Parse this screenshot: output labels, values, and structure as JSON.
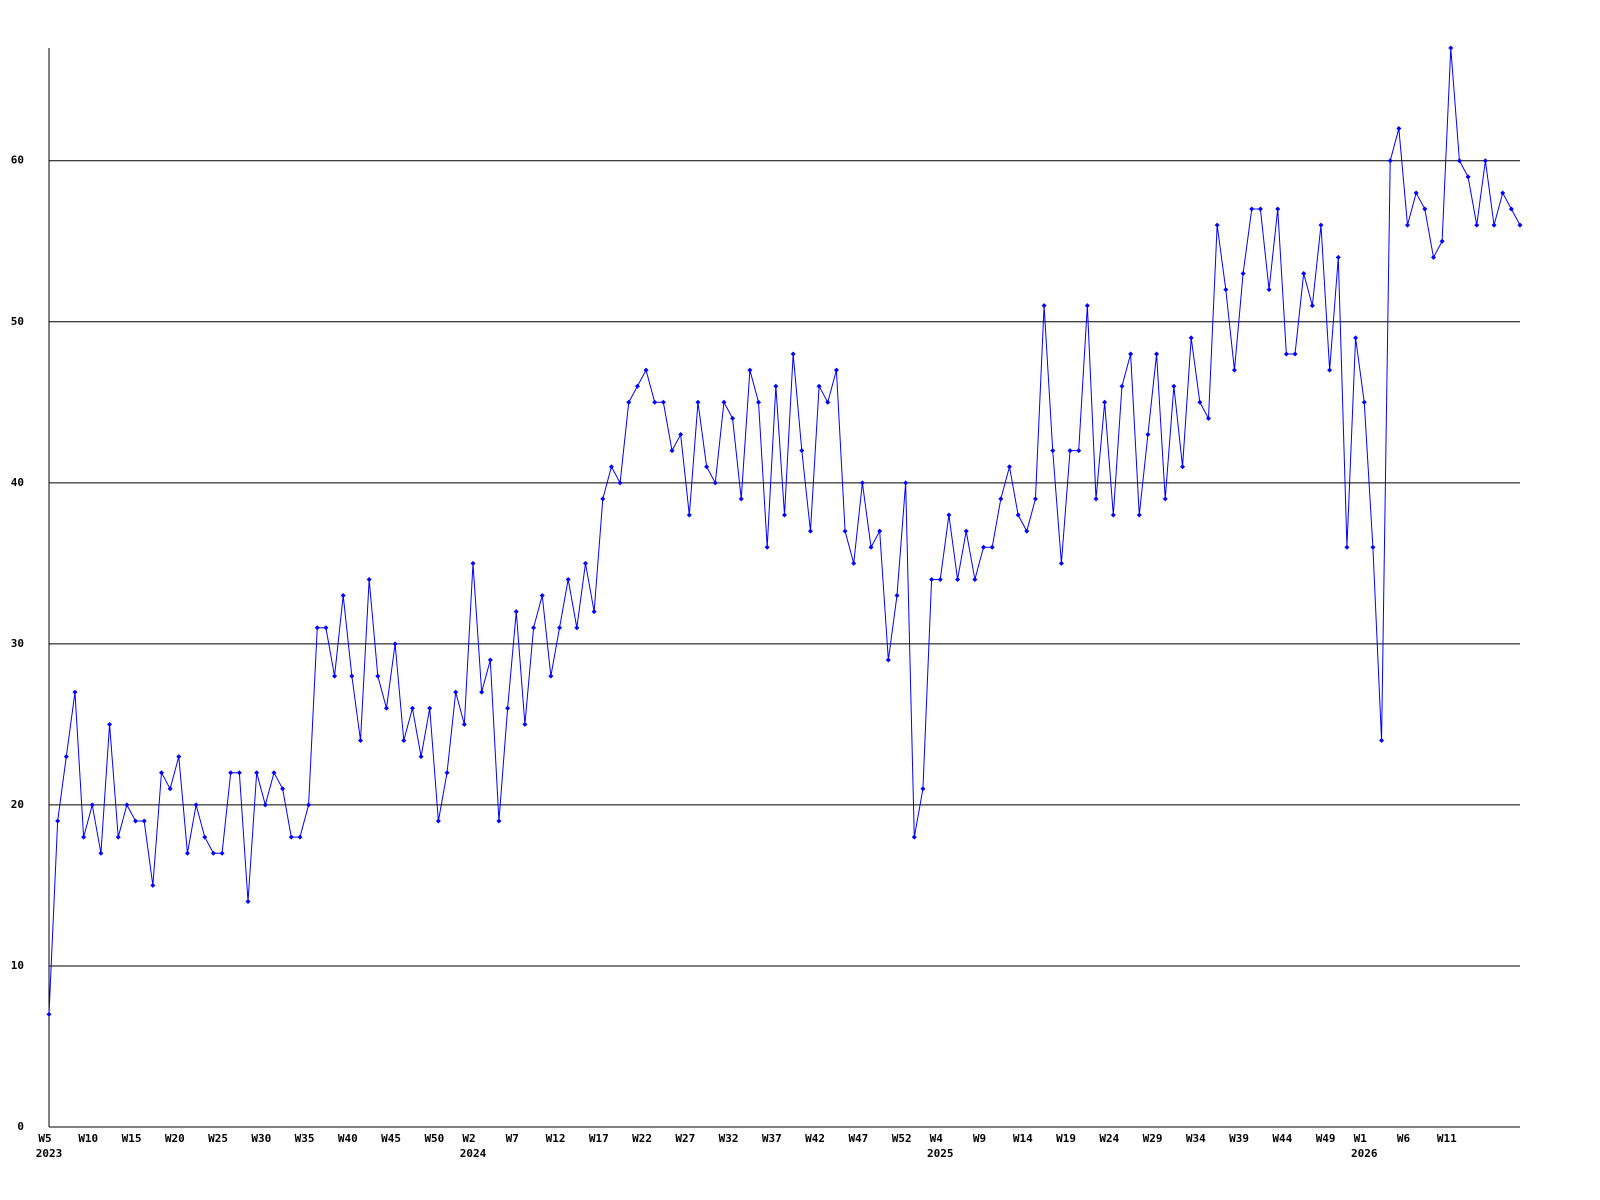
{
  "chart_data": {
    "type": "line",
    "categories": [
      "W5",
      null,
      null,
      null,
      null,
      "W10",
      null,
      null,
      null,
      null,
      "W15",
      null,
      null,
      null,
      null,
      "W20",
      null,
      null,
      null,
      null,
      "W25",
      null,
      null,
      null,
      null,
      "W30",
      null,
      null,
      null,
      null,
      "W35",
      null,
      null,
      null,
      null,
      "W40",
      null,
      null,
      null,
      null,
      "W45",
      null,
      null,
      null,
      null,
      "W50",
      null,
      null,
      null,
      "W2",
      null,
      null,
      null,
      null,
      "W7",
      null,
      null,
      null,
      null,
      "W12",
      null,
      null,
      null,
      null,
      "W17",
      null,
      null,
      null,
      null,
      "W22",
      null,
      null,
      null,
      null,
      "W27",
      null,
      null,
      null,
      null,
      "W32",
      null,
      null,
      null,
      null,
      "W37",
      null,
      null,
      null,
      null,
      "W42",
      null,
      null,
      null,
      null,
      "W47",
      null,
      null,
      null,
      null,
      "W52",
      null,
      null,
      null,
      "W4",
      null,
      null,
      null,
      null,
      "W9",
      null,
      null,
      null,
      null,
      "W14",
      null,
      null,
      null,
      null,
      "W19",
      null,
      null,
      null,
      null,
      "W24",
      null,
      null,
      null,
      null,
      "W29",
      null,
      null,
      null,
      null,
      "W34",
      null,
      null,
      null,
      null,
      "W39",
      null,
      null,
      null,
      null,
      "W44",
      null,
      null,
      null,
      null,
      "W49",
      null,
      null,
      null,
      "W1",
      null,
      null,
      null,
      null,
      "W6",
      null,
      null,
      null,
      null,
      "W11",
      null,
      null,
      null,
      null,
      null,
      null,
      null,
      null
    ],
    "category_years": [
      "2023",
      null,
      null,
      null,
      null,
      null,
      null,
      null,
      null,
      null,
      null,
      null,
      null,
      null,
      null,
      null,
      null,
      null,
      null,
      null,
      null,
      null,
      null,
      null,
      null,
      null,
      null,
      null,
      null,
      null,
      null,
      null,
      null,
      null,
      null,
      null,
      null,
      null,
      null,
      null,
      null,
      null,
      null,
      null,
      null,
      null,
      null,
      null,
      null,
      "2024",
      null,
      null,
      null,
      null,
      null,
      null,
      null,
      null,
      null,
      null,
      null,
      null,
      null,
      null,
      null,
      null,
      null,
      null,
      null,
      null,
      null,
      null,
      null,
      null,
      null,
      null,
      null,
      null,
      null,
      null,
      null,
      null,
      null,
      null,
      null,
      null,
      null,
      null,
      null,
      null,
      null,
      null,
      null,
      null,
      null,
      null,
      null,
      null,
      null,
      null,
      null,
      null,
      null,
      "2025",
      null,
      null,
      null,
      null,
      null,
      null,
      null,
      null,
      null,
      null,
      null,
      null,
      null,
      null,
      null,
      null,
      null,
      null,
      null,
      null,
      null,
      null,
      null,
      null,
      null,
      null,
      null,
      null,
      null,
      null,
      null,
      null,
      null,
      null,
      null,
      null,
      null,
      null,
      null,
      null,
      null,
      null,
      null,
      null,
      null,
      null,
      null,
      null,
      "2026",
      null,
      null,
      null,
      null,
      null,
      null,
      null,
      null,
      null,
      null,
      null,
      null,
      null,
      null,
      null,
      null,
      null,
      null
    ],
    "values": [
      7,
      19,
      23,
      27,
      18,
      20,
      17,
      25,
      18,
      20,
      19,
      19,
      15,
      22,
      21,
      23,
      17,
      20,
      18,
      17,
      17,
      22,
      22,
      14,
      22,
      20,
      22,
      21,
      18,
      18,
      20,
      31,
      31,
      28,
      33,
      28,
      24,
      34,
      28,
      26,
      30,
      24,
      26,
      23,
      26,
      19,
      22,
      27,
      25,
      35,
      27,
      29,
      19,
      26,
      32,
      25,
      31,
      33,
      28,
      31,
      34,
      31,
      35,
      32,
      39,
      41,
      40,
      45,
      46,
      47,
      45,
      45,
      42,
      43,
      38,
      45,
      41,
      40,
      45,
      44,
      39,
      47,
      45,
      36,
      46,
      38,
      48,
      42,
      37,
      46,
      45,
      47,
      37,
      35,
      40,
      36,
      37,
      29,
      33,
      40,
      18,
      21,
      34,
      34,
      38,
      34,
      37,
      34,
      36,
      36,
      39,
      41,
      38,
      37,
      39,
      51,
      42,
      35,
      42,
      42,
      51,
      39,
      45,
      38,
      46,
      48,
      38,
      43,
      48,
      39,
      46,
      41,
      49,
      45,
      44,
      56,
      52,
      47,
      53,
      57,
      57,
      52,
      57,
      48,
      48,
      53,
      51,
      56,
      47,
      54,
      36,
      49,
      45,
      36,
      24,
      60,
      62,
      56,
      58,
      57,
      54,
      55,
      67,
      60,
      59,
      56,
      60,
      56,
      58,
      57,
      56
    ],
    "color": "#0000ff",
    "ylim": [
      0,
      67
    ],
    "yticks": [
      0,
      10,
      20,
      30,
      40,
      50,
      60
    ],
    "grid": true
  }
}
